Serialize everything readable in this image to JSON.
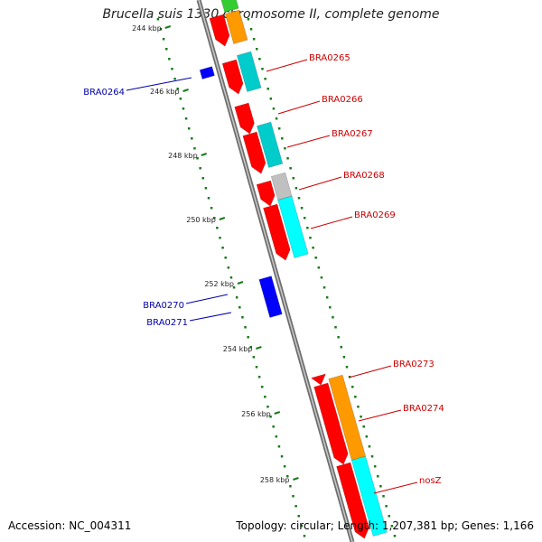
{
  "title": "Brucella suis 1330 chromosome II, complete genome",
  "footer": {
    "accession": "Accession: NC_004311",
    "summary": "Topology: circular; Length: 1,207,381 bp; Genes: 1,166"
  },
  "colors": {
    "backbone": "#7f7f7f",
    "forward_cds": "#ff0000",
    "reverse_cds": "#0000ff",
    "orange_feature": "#ff9900",
    "teal_feature": "#00cccc",
    "cyan_feature": "#00ffff",
    "grey_feature": "#c0c0c0",
    "green_feature": "#33cc33",
    "gc_dots": "#1a7a1a",
    "forward_label": "#cc0000",
    "reverse_label": "#0000aa"
  },
  "tick_labels": [
    "244 kbp",
    "246 kbp",
    "248 kbp",
    "250 kbp",
    "252 kbp",
    "254 kbp",
    "256 kbp",
    "258 kbp"
  ],
  "forward_genes": [
    "BRA0265",
    "BRA0266",
    "BRA0267",
    "BRA0268",
    "BRA0269",
    "BRA0273",
    "BRA0274",
    "nosZ"
  ],
  "reverse_genes": [
    "BRA0264",
    "BRA0270",
    "BRA0271"
  ]
}
